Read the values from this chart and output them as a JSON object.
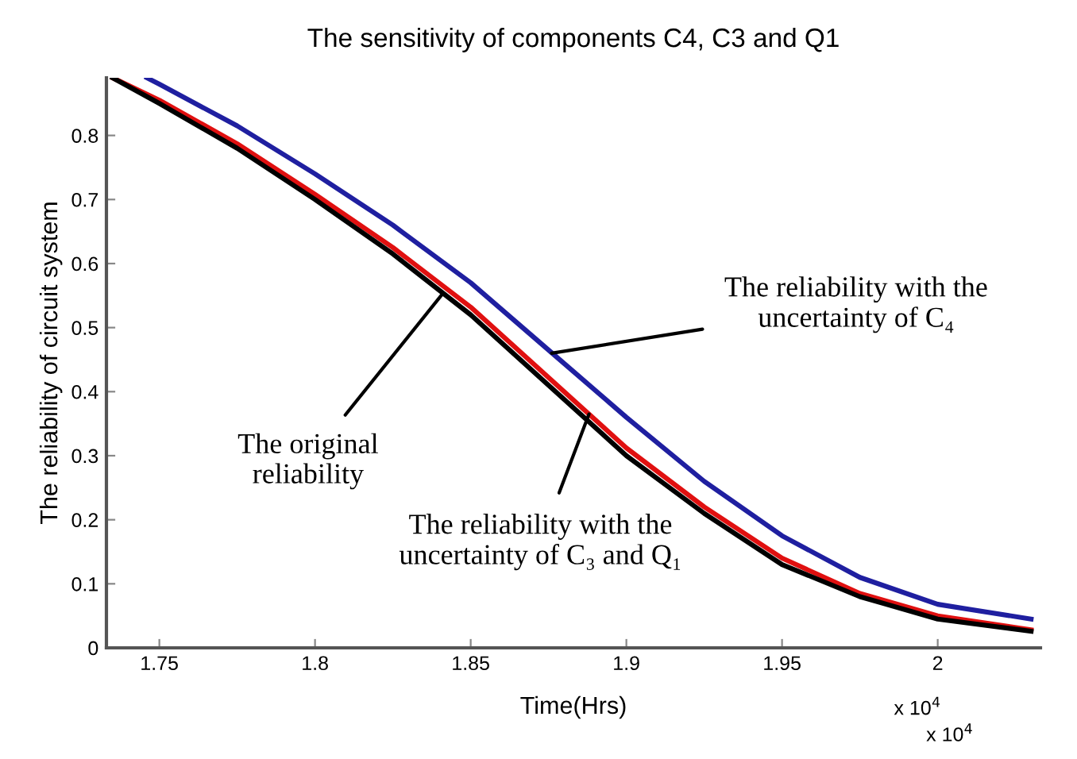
{
  "chart_data": {
    "type": "line",
    "title": "The sensitivity of components C4, C3 and Q1",
    "xlabel": "Time(Hrs)",
    "ylabel": "The reliability of circuit system",
    "series": [
      {
        "color": "#1f1fa0",
        "x": [
          1.746,
          1.75,
          1.775,
          1.8,
          1.825,
          1.85,
          1.875,
          1.9,
          1.925,
          1.95,
          1.975,
          2.0,
          2.03
        ],
        "values": [
          0.89,
          0.88,
          0.815,
          0.74,
          0.66,
          0.57,
          0.465,
          0.36,
          0.26,
          0.175,
          0.11,
          0.068,
          0.045
        ]
      },
      {
        "color": "#e01010",
        "x": [
          1.735,
          1.75,
          1.775,
          1.8,
          1.825,
          1.85,
          1.875,
          1.9,
          1.925,
          1.95,
          1.975,
          2.0,
          2.03
        ],
        "values": [
          0.89,
          0.855,
          0.787,
          0.708,
          0.625,
          0.532,
          0.422,
          0.312,
          0.22,
          0.14,
          0.085,
          0.05,
          0.028
        ]
      },
      {
        "color": "#000000",
        "x": [
          1.735,
          1.75,
          1.775,
          1.8,
          1.825,
          1.85,
          1.875,
          1.9,
          1.925,
          1.95,
          1.975,
          2.0,
          2.03
        ],
        "values": [
          0.89,
          0.85,
          0.78,
          0.7,
          0.615,
          0.52,
          0.41,
          0.3,
          0.21,
          0.13,
          0.08,
          0.045,
          0.026
        ]
      }
    ],
    "annotations": [
      {
        "text": "The original\nreliability",
        "x": 1.841,
        "y": 0.553
      },
      {
        "text": "The reliability with the\nuncertainty of C₄",
        "x": 1.876,
        "y": 0.46
      },
      {
        "text": "The reliability with the\nuncertainty of C₃ and Q₁",
        "x": 1.888,
        "y": 0.365
      },
      "x 10$^{4}$",
      "x 10$^{4}$"
    ],
    "xlim": [
      1.733,
      2.033
    ],
    "ylim": [
      0,
      0.89
    ],
    "xticks": [
      1.75,
      1.8,
      1.85,
      1.9,
      1.95,
      2
    ],
    "yticks": [
      0,
      0.1,
      0.2,
      0.3,
      0.4,
      0.5,
      0.6,
      0.7,
      0.8
    ],
    "grid": false,
    "legend": false,
    "marker": "none",
    "line_style": "solid"
  }
}
